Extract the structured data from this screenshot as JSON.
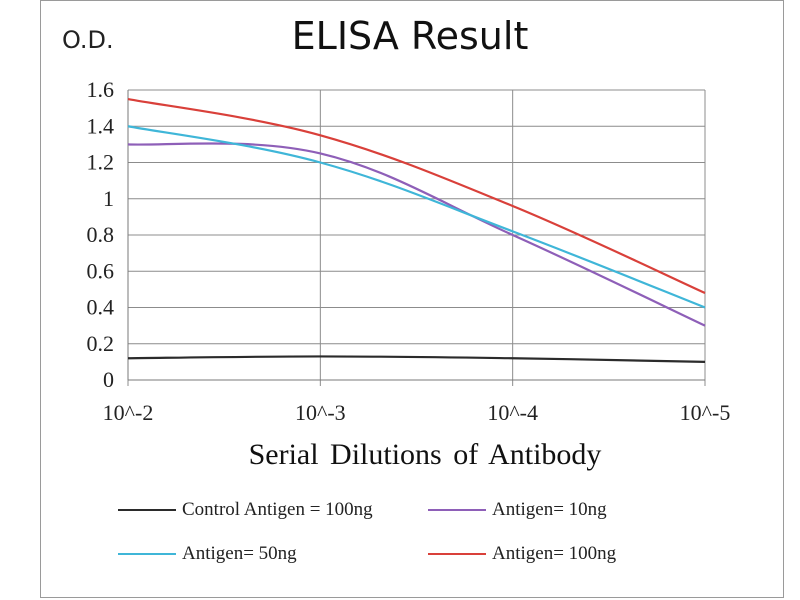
{
  "chart_data": {
    "type": "line",
    "title": "ELISA Result",
    "ylabel": "O.D.",
    "xlabel": "Serial Dilutions  of Antibody",
    "categories": [
      "10^-2",
      "10^-3",
      "10^-4",
      "10^-5"
    ],
    "ylim": [
      0,
      1.6
    ],
    "yticks": [
      "0",
      "0.2",
      "0.4",
      "0.6",
      "0.8",
      "1",
      "1.2",
      "1.4",
      "1.6"
    ],
    "grid": true,
    "legend_position": "bottom",
    "series": [
      {
        "name": "Control Antigen = 100ng",
        "color": "#2b2b2b",
        "values": [
          0.12,
          0.13,
          0.12,
          0.1
        ]
      },
      {
        "name": "Antigen= 10ng",
        "color": "#8e5fb8",
        "values": [
          1.3,
          1.25,
          0.8,
          0.3
        ]
      },
      {
        "name": "Antigen= 50ng",
        "color": "#3fb6d8",
        "values": [
          1.4,
          1.2,
          0.82,
          0.4
        ]
      },
      {
        "name": "Antigen= 100ng",
        "color": "#d9403a",
        "values": [
          1.55,
          1.35,
          0.96,
          0.48
        ]
      }
    ]
  }
}
